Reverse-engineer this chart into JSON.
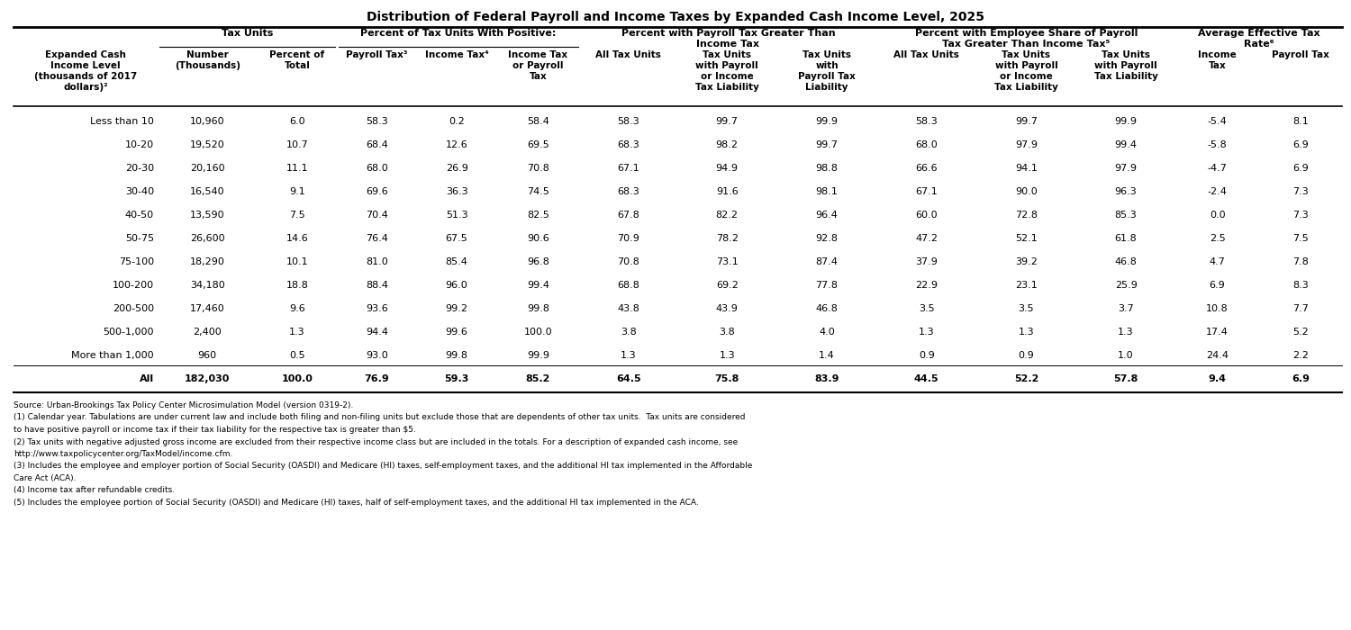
{
  "title": "Distribution of Federal Payroll and Income Taxes by Expanded Cash Income Level, 2025",
  "rows": [
    [
      "Less than 10",
      "10,960",
      "6.0",
      "58.3",
      "0.2",
      "58.4",
      "58.3",
      "99.7",
      "99.9",
      "58.3",
      "99.7",
      "99.9",
      "-5.4",
      "8.1"
    ],
    [
      "10-20",
      "19,520",
      "10.7",
      "68.4",
      "12.6",
      "69.5",
      "68.3",
      "98.2",
      "99.7",
      "68.0",
      "97.9",
      "99.4",
      "-5.8",
      "6.9"
    ],
    [
      "20-30",
      "20,160",
      "11.1",
      "68.0",
      "26.9",
      "70.8",
      "67.1",
      "94.9",
      "98.8",
      "66.6",
      "94.1",
      "97.9",
      "-4.7",
      "6.9"
    ],
    [
      "30-40",
      "16,540",
      "9.1",
      "69.6",
      "36.3",
      "74.5",
      "68.3",
      "91.6",
      "98.1",
      "67.1",
      "90.0",
      "96.3",
      "-2.4",
      "7.3"
    ],
    [
      "40-50",
      "13,590",
      "7.5",
      "70.4",
      "51.3",
      "82.5",
      "67.8",
      "82.2",
      "96.4",
      "60.0",
      "72.8",
      "85.3",
      "0.0",
      "7.3"
    ],
    [
      "50-75",
      "26,600",
      "14.6",
      "76.4",
      "67.5",
      "90.6",
      "70.9",
      "78.2",
      "92.8",
      "47.2",
      "52.1",
      "61.8",
      "2.5",
      "7.5"
    ],
    [
      "75-100",
      "18,290",
      "10.1",
      "81.0",
      "85.4",
      "96.8",
      "70.8",
      "73.1",
      "87.4",
      "37.9",
      "39.2",
      "46.8",
      "4.7",
      "7.8"
    ],
    [
      "100-200",
      "34,180",
      "18.8",
      "88.4",
      "96.0",
      "99.4",
      "68.8",
      "69.2",
      "77.8",
      "22.9",
      "23.1",
      "25.9",
      "6.9",
      "8.3"
    ],
    [
      "200-500",
      "17,460",
      "9.6",
      "93.6",
      "99.2",
      "99.8",
      "43.8",
      "43.9",
      "46.8",
      "3.5",
      "3.5",
      "3.7",
      "10.8",
      "7.7"
    ],
    [
      "500-1,000",
      "2,400",
      "1.3",
      "94.4",
      "99.6",
      "100.0",
      "3.8",
      "3.8",
      "4.0",
      "1.3",
      "1.3",
      "1.3",
      "17.4",
      "5.2"
    ],
    [
      "More than 1,000",
      "960",
      "0.5",
      "93.0",
      "99.8",
      "99.9",
      "1.3",
      "1.3",
      "1.4",
      "0.9",
      "0.9",
      "1.0",
      "24.4",
      "2.2"
    ],
    [
      "All",
      "182,030",
      "100.0",
      "76.9",
      "59.3",
      "85.2",
      "64.5",
      "75.8",
      "83.9",
      "44.5",
      "52.2",
      "57.8",
      "9.4",
      "6.9"
    ]
  ],
  "footnotes": [
    "Source: Urban-Brookings Tax Policy Center Microsimulation Model (version 0319-2).",
    "(1) Calendar year. Tabulations are under current law and include both filing and non-filing units but exclude those that are dependents of other tax units.  Tax units are considered",
    "to have positive payroll or income tax if their tax liability for the respective tax is greater than $5.",
    "(2) Tax units with negative adjusted gross income are excluded from their respective income class but are included in the totals. For a description of expanded cash income, see",
    "http://www.taxpolicycenter.org/TaxModel/income.cfm.",
    "(3) Includes the employee and employer portion of Social Security (OASDI) and Medicare (HI) taxes, self-employment taxes, and the additional HI tax implemented in the Affordable",
    "Care Act (ACA).",
    "(4) Income tax after refundable credits.",
    "(5) Includes the employee portion of Social Security (OASDI) and Medicare (HI) taxes, half of self-employment taxes, and the additional HI tax implemented in the ACA."
  ],
  "col_group_labels": [
    "Tax Units",
    "Percent of Tax Units With Positive:",
    "Percent with Payroll Tax Greater Than\nIncome Tax",
    "Percent with Employee Share of Payroll\nTax Greater Than Income Tax⁵",
    "Average Effective Tax\nRate⁶"
  ],
  "col_group_spans": [
    2,
    3,
    3,
    3,
    2
  ],
  "col_group_start_cols": [
    1,
    3,
    6,
    9,
    12
  ],
  "sub_headers": [
    "Expanded Cash\nIncome Level\n(thousands of 2017\ndollars)²",
    "Number\n(Thousands)",
    "Percent of\nTotal",
    "Payroll Tax³",
    "Income Tax⁴",
    "Income Tax\nor Payroll\nTax",
    "All Tax Units",
    "Tax Units\nwith Payroll\nor Income\nTax Liability",
    "Tax Units\nwith\nPayroll Tax\nLiability",
    "All Tax Units",
    "Tax Units\nwith Payroll\nor Income\nTax Liability",
    "Tax Units\nwith Payroll\nTax Liability",
    "Income\nTax",
    "Payroll Tax"
  ]
}
